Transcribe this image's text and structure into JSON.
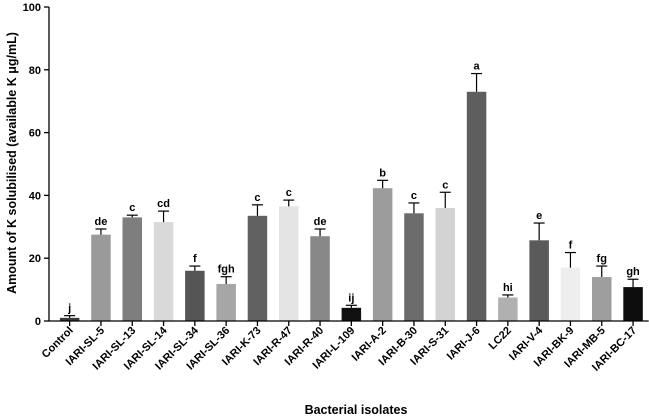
{
  "chart_data": {
    "type": "bar",
    "title": "",
    "xlabel": "Bacterial isolates",
    "ylabel": "Amount of K solubilised (available K μg/mL)",
    "ylim": [
      0,
      100
    ],
    "yticks": [
      0,
      20,
      40,
      60,
      80,
      100
    ],
    "categories": [
      "Control",
      "IARI-SL-5",
      "IARI-SL-13",
      "IARI-SL-14",
      "IARI-SL-34",
      "IARI-SL-36",
      "IARI-K-73",
      "IARI-R-47",
      "IARI-R-40",
      "IARI-L-109",
      "IARI-A-2",
      "IARI-B-30",
      "IARI-S-31",
      "IARI-J-6",
      "LC22",
      "IARI-V-4",
      "IARI-BK-9",
      "IARI-MB-5",
      "IARI-BC-17"
    ],
    "values": [
      1,
      27.5,
      33,
      31.5,
      16,
      11.8,
      33.5,
      36.5,
      27,
      4.2,
      42.3,
      34.3,
      36,
      73,
      7.5,
      25.7,
      17,
      14,
      10.8
    ],
    "errors": [
      0.7,
      1.8,
      0.7,
      3.5,
      1.5,
      2.3,
      3.5,
      2,
      2.3,
      0.8,
      2.5,
      3.3,
      5,
      5.8,
      0.8,
      5.5,
      4.8,
      3.5,
      2.5
    ],
    "significance": [
      "j",
      "de",
      "c",
      "cd",
      "f",
      "fgh",
      "c",
      "c",
      "de",
      "ij",
      "b",
      "c",
      "c",
      "a",
      "hi",
      "e",
      "f",
      "fg",
      "gh"
    ],
    "bar_colors": [
      "#3a3a3a",
      "#9a9a9a",
      "#7e7e7e",
      "#d9d9d9",
      "#555555",
      "#a6a6a6",
      "#616161",
      "#e4e4e4",
      "#888888",
      "#111111",
      "#9c9c9c",
      "#6c6c6c",
      "#d3d3d3",
      "#5e5e5e",
      "#b0b0b0",
      "#5a5a5a",
      "#eeeeee",
      "#9e9e9e",
      "#0d0d0d"
    ]
  }
}
